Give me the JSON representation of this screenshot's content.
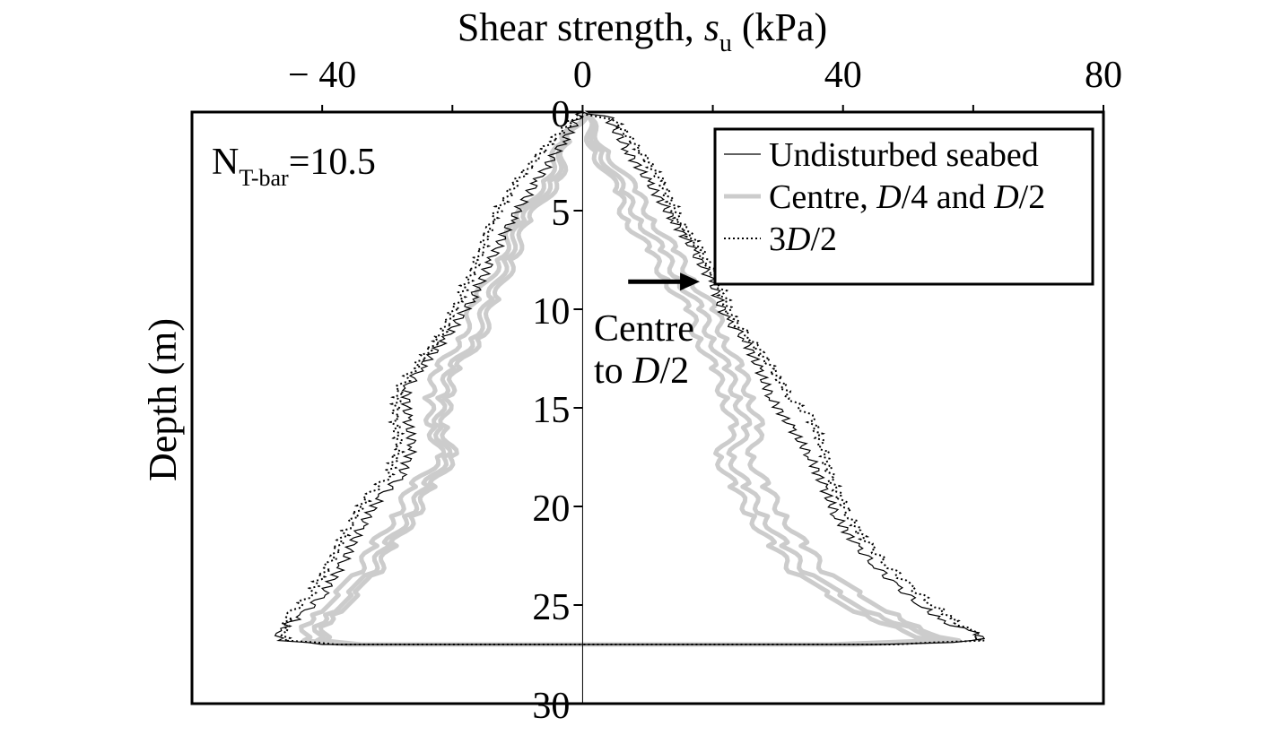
{
  "chart_data": {
    "type": "line",
    "title": "",
    "xlabel_prefix": "Shear strength, ",
    "xlabel_symbol": "s",
    "xlabel_sub": "u",
    "xlabel_suffix": " (kPa)",
    "ylabel": "Depth (m)",
    "xlim": [
      -60,
      80
    ],
    "ylim": [
      0,
      30
    ],
    "y_inverted": true,
    "x_axis_position": "top",
    "x_ticks": [
      -40,
      0,
      40,
      80
    ],
    "x_tick_labels": [
      "− 40",
      "0",
      "40",
      "80"
    ],
    "x_minor_ticks": [
      -20,
      20,
      60
    ],
    "y_ticks": [
      0,
      5,
      10,
      15,
      20,
      25,
      30
    ],
    "y_tick_labels": [
      "0",
      "5",
      "10",
      "15",
      "20",
      "25",
      "30"
    ],
    "grid": false,
    "legend_position": "top-right",
    "legend": [
      {
        "parts": [
          {
            "t": "Undisturbed seabed",
            "i": false
          }
        ]
      },
      {
        "parts": [
          {
            "t": "Centre, ",
            "i": false
          },
          {
            "t": "D",
            "i": true
          },
          {
            "t": "/4 and ",
            "i": false
          },
          {
            "t": "D",
            "i": true
          },
          {
            "t": "/2",
            "i": false
          }
        ]
      },
      {
        "parts": [
          {
            "t": "3",
            "i": false
          },
          {
            "t": "D",
            "i": true
          },
          {
            "t": "/2",
            "i": false
          }
        ]
      }
    ],
    "annotation_nt": {
      "main": "N",
      "sub": "T-bar",
      "rest": "=10.5"
    },
    "annotation_arrow": {
      "line1": "Centre",
      "line2_parts": [
        {
          "t": "to ",
          "i": false
        },
        {
          "t": "D",
          "i": true
        },
        {
          "t": "/2",
          "i": false
        }
      ],
      "tip_x": 18,
      "tip_y": 8.6,
      "tail_x": 7,
      "tail_y": 8.6
    },
    "series": [
      {
        "name": "Undisturbed seabed",
        "color": "#000000",
        "style": "solid",
        "right_branch": [
          [
            0,
            0
          ],
          [
            4,
            0.3
          ],
          [
            7,
            2
          ],
          [
            10,
            3.5
          ],
          [
            14,
            5.5
          ],
          [
            17,
            7
          ],
          [
            20,
            8.7
          ],
          [
            22,
            10.5
          ],
          [
            25,
            11.5
          ],
          [
            27,
            13
          ],
          [
            29,
            14.5
          ],
          [
            32,
            16
          ],
          [
            35,
            17.5
          ],
          [
            37,
            19
          ],
          [
            39,
            20.5
          ],
          [
            42,
            22
          ],
          [
            45,
            23
          ],
          [
            48,
            24
          ],
          [
            52,
            25
          ],
          [
            55,
            25.8
          ],
          [
            60,
            26.4
          ],
          [
            62,
            26.7
          ],
          [
            56,
            26.9
          ],
          [
            45,
            27
          ],
          [
            0,
            27
          ]
        ],
        "left_branch": [
          [
            0,
            0
          ],
          [
            -3,
            1.5
          ],
          [
            -7,
            3.5
          ],
          [
            -11,
            5.5
          ],
          [
            -14,
            7.5
          ],
          [
            -17,
            9.5
          ],
          [
            -21,
            11.5
          ],
          [
            -25,
            13
          ],
          [
            -27,
            14
          ],
          [
            -27,
            15.5
          ],
          [
            -26,
            17
          ],
          [
            -28,
            18.5
          ],
          [
            -31,
            19.5
          ],
          [
            -34,
            21
          ],
          [
            -37,
            23
          ],
          [
            -40,
            24.5
          ],
          [
            -43,
            25.5
          ],
          [
            -47,
            26.3
          ],
          [
            -46,
            26.8
          ],
          [
            -40,
            27
          ],
          [
            0,
            27
          ]
        ]
      },
      {
        "name": "Centre, D/4 and D/2",
        "color": "#cccccc",
        "style": "thick",
        "right_branches": [
          [
            [
              0,
              0
            ],
            [
              3,
              2
            ],
            [
              6,
              4
            ],
            [
              9,
              5.5
            ],
            [
              12,
              7
            ],
            [
              15,
              8.5
            ],
            [
              18,
              10
            ],
            [
              20,
              11.5
            ],
            [
              22,
              13
            ],
            [
              24,
              14.5
            ],
            [
              25,
              16
            ],
            [
              23,
              17.5
            ],
            [
              25,
              19
            ],
            [
              28,
              20.5
            ],
            [
              31,
              22
            ],
            [
              35,
              23.5
            ],
            [
              40,
              24.5
            ],
            [
              45,
              25.5
            ],
            [
              52,
              26.3
            ],
            [
              55,
              26.8
            ],
            [
              40,
              27
            ],
            [
              0,
              27
            ]
          ],
          [
            [
              0,
              0
            ],
            [
              4,
              2
            ],
            [
              8,
              4
            ],
            [
              11,
              5.5
            ],
            [
              14,
              7
            ],
            [
              17,
              8.5
            ],
            [
              20,
              10
            ],
            [
              22,
              11.5
            ],
            [
              24,
              13
            ],
            [
              26,
              14.5
            ],
            [
              27,
              16
            ],
            [
              26,
              17.5
            ],
            [
              28,
              19
            ],
            [
              31,
              20.5
            ],
            [
              34,
              22
            ],
            [
              38,
              23.5
            ],
            [
              43,
              24.5
            ],
            [
              48,
              25.5
            ],
            [
              53,
              26.3
            ],
            [
              57,
              26.8
            ],
            [
              42,
              27
            ],
            [
              0,
              27
            ]
          ],
          [
            [
              0,
              0
            ],
            [
              2,
              2
            ],
            [
              5,
              4
            ],
            [
              7,
              5.5
            ],
            [
              10,
              7
            ],
            [
              13,
              8.5
            ],
            [
              16,
              10
            ],
            [
              18,
              11.5
            ],
            [
              20,
              13
            ],
            [
              22,
              14.5
            ],
            [
              23,
              16
            ],
            [
              21,
              17.5
            ],
            [
              23,
              19
            ],
            [
              26,
              20.5
            ],
            [
              29,
              22
            ],
            [
              33,
              23.5
            ],
            [
              38,
              24.5
            ],
            [
              43,
              25.5
            ],
            [
              50,
              26.3
            ],
            [
              53,
              26.8
            ],
            [
              38,
              27
            ],
            [
              0,
              27
            ]
          ]
        ],
        "left_branches": [
          [
            [
              0,
              0
            ],
            [
              -2,
              1.5
            ],
            [
              -5,
              3.5
            ],
            [
              -9,
              5.5
            ],
            [
              -12,
              7.5
            ],
            [
              -14,
              9.5
            ],
            [
              -17,
              11.5
            ],
            [
              -20,
              13
            ],
            [
              -22,
              14.5
            ],
            [
              -22,
              16
            ],
            [
              -21,
              17.5
            ],
            [
              -24,
              19
            ],
            [
              -27,
              20.5
            ],
            [
              -30,
              22
            ],
            [
              -33,
              23.5
            ],
            [
              -36,
              24.5
            ],
            [
              -39,
              25.5
            ],
            [
              -42,
              26.3
            ],
            [
              -40,
              26.8
            ],
            [
              -35,
              27
            ],
            [
              0,
              27
            ]
          ],
          [
            [
              0,
              0
            ],
            [
              -3,
              1.5
            ],
            [
              -6,
              3.5
            ],
            [
              -10,
              5.5
            ],
            [
              -13,
              7.5
            ],
            [
              -16,
              9.5
            ],
            [
              -19,
              11.5
            ],
            [
              -22,
              13
            ],
            [
              -24,
              14.5
            ],
            [
              -23,
              16
            ],
            [
              -22,
              17.5
            ],
            [
              -26,
              19
            ],
            [
              -29,
              20.5
            ],
            [
              -32,
              22
            ],
            [
              -35,
              23.5
            ],
            [
              -38,
              24.5
            ],
            [
              -41,
              25.5
            ],
            [
              -44,
              26.3
            ],
            [
              -42,
              26.8
            ],
            [
              -36,
              27
            ],
            [
              0,
              27
            ]
          ],
          [
            [
              0,
              0
            ],
            [
              -2,
              1.5
            ],
            [
              -4,
              3.5
            ],
            [
              -8,
              5.5
            ],
            [
              -11,
              7.5
            ],
            [
              -13,
              9.5
            ],
            [
              -16,
              11.5
            ],
            [
              -19,
              13
            ],
            [
              -21,
              14.5
            ],
            [
              -21,
              16
            ],
            [
              -20,
              17.5
            ],
            [
              -23,
              19
            ],
            [
              -26,
              20.5
            ],
            [
              -29,
              22
            ],
            [
              -32,
              23.5
            ],
            [
              -35,
              24.5
            ],
            [
              -38,
              25.5
            ],
            [
              -41,
              26.3
            ],
            [
              -39,
              26.8
            ],
            [
              -34,
              27
            ],
            [
              0,
              27
            ]
          ]
        ]
      },
      {
        "name": "3D/2",
        "color": "#000000",
        "style": "dotted",
        "right_branch": [
          [
            0,
            0
          ],
          [
            5,
            0.5
          ],
          [
            9,
            2
          ],
          [
            12,
            3.5
          ],
          [
            15,
            5.5
          ],
          [
            18,
            7
          ],
          [
            21,
            8.7
          ],
          [
            23,
            10.5
          ],
          [
            26,
            11.5
          ],
          [
            29,
            13
          ],
          [
            32,
            14.5
          ],
          [
            35,
            15.5
          ],
          [
            37,
            17
          ],
          [
            38,
            18.5
          ],
          [
            41,
            20.5
          ],
          [
            44,
            22
          ],
          [
            47,
            23
          ],
          [
            50,
            24
          ],
          [
            54,
            25
          ],
          [
            57,
            25.8
          ],
          [
            60,
            26.4
          ],
          [
            61,
            26.8
          ],
          [
            48,
            27
          ],
          [
            0,
            27
          ]
        ],
        "left_branch": [
          [
            0,
            0
          ],
          [
            -5,
            1.5
          ],
          [
            -10,
            3.5
          ],
          [
            -14,
            5.5
          ],
          [
            -16,
            7.5
          ],
          [
            -19,
            9.5
          ],
          [
            -22,
            11.5
          ],
          [
            -26,
            13
          ],
          [
            -28,
            14
          ],
          [
            -29,
            15.5
          ],
          [
            -28,
            17
          ],
          [
            -30,
            18.5
          ],
          [
            -33,
            19.5
          ],
          [
            -36,
            21
          ],
          [
            -39,
            23
          ],
          [
            -42,
            24.5
          ],
          [
            -45,
            25.5
          ],
          [
            -46,
            26.3
          ],
          [
            -45,
            26.8
          ],
          [
            -38,
            27
          ],
          [
            0,
            27
          ]
        ]
      }
    ]
  }
}
